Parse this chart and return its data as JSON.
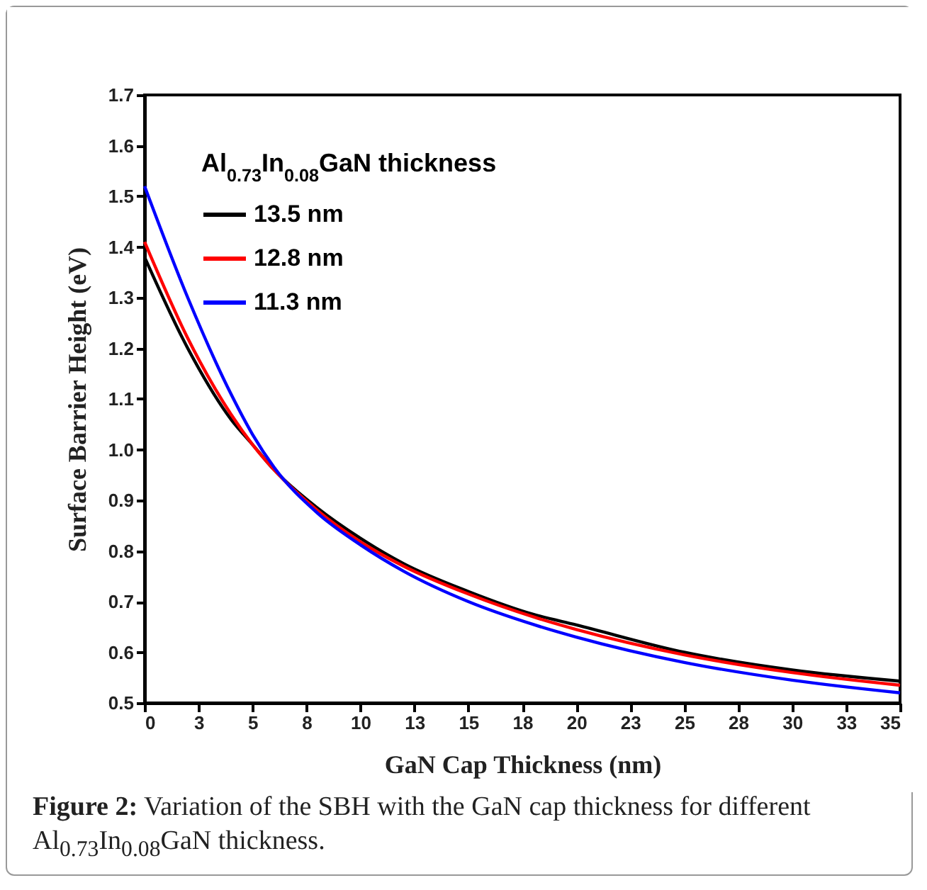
{
  "chart_data": {
    "type": "line",
    "xlabel": "GaN Cap Thickness (nm)",
    "ylabel": "Surface Barrier Height (eV)",
    "legend_title": "Al$_{0.73}$In$_{0.08}$GaN thickness",
    "x": [
      0,
      2,
      4,
      5,
      6,
      8,
      10,
      12,
      15,
      18,
      20,
      25,
      30,
      35
    ],
    "series": [
      {
        "name": "13.5 nm",
        "color": "#000000",
        "values": [
          1.38,
          1.2,
          1.06,
          1.01,
          0.96,
          0.885,
          0.825,
          0.775,
          0.72,
          0.675,
          0.654,
          0.6,
          0.565,
          0.543
        ]
      },
      {
        "name": "12.8 nm",
        "color": "#ff0000",
        "values": [
          1.41,
          1.22,
          1.07,
          1.01,
          0.96,
          0.88,
          0.818,
          0.77,
          0.715,
          0.67,
          0.645,
          0.595,
          0.56,
          0.535
        ]
      },
      {
        "name": "11.3 nm",
        "color": "#0000ff",
        "values": [
          1.52,
          1.3,
          1.11,
          1.03,
          0.965,
          0.875,
          0.812,
          0.76,
          0.7,
          0.655,
          0.63,
          0.58,
          0.545,
          0.52
        ]
      }
    ],
    "xlim": [
      0,
      35
    ],
    "xticks": [
      0,
      {
        "value": 2.5,
        "label": "3"
      },
      5,
      {
        "value": 7.5,
        "label": "8"
      },
      10,
      {
        "value": 12.5,
        "label": "13"
      },
      15,
      {
        "value": 17.5,
        "label": "18"
      },
      20,
      {
        "value": 22.5,
        "label": "23"
      },
      25,
      {
        "value": 27.5,
        "label": "28"
      },
      30,
      {
        "value": 32.5,
        "label": "33"
      },
      35
    ],
    "ylim": [
      0.5,
      1.7
    ],
    "yticks": [
      0.5,
      0.6,
      0.7,
      0.8,
      0.9,
      {
        "value": 1,
        "label": "1.0"
      },
      1.1,
      1.2,
      1.3,
      1.4,
      1.5,
      1.6,
      1.7
    ],
    "legend": "top left",
    "grid": false,
    "marker": "none",
    "line_style": "solid",
    "annotations": [
      "Figure 2: Variation of the SBH with the GaN cap thickness for different Al$_{0.73}$In$_{0.08}$GaN thickness."
    ]
  }
}
